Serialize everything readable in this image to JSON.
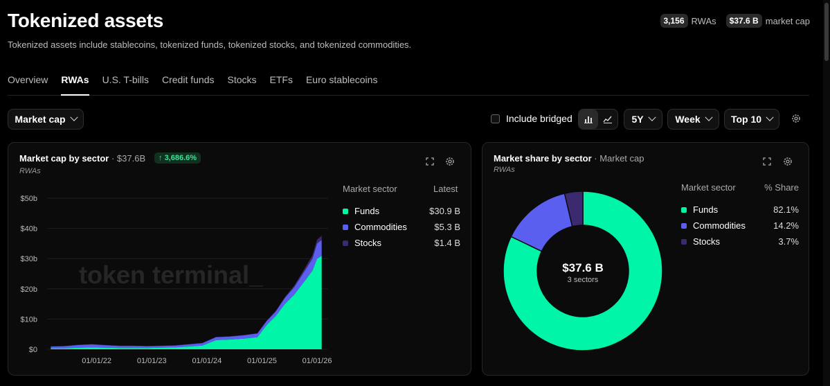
{
  "header": {
    "title": "Tokenized assets",
    "subtitle": "Tokenized assets include stablecoins, tokenized funds, tokenized stocks, and tokenized commodities.",
    "stats": [
      {
        "value": "3,156",
        "label": "RWAs"
      },
      {
        "value": "$37.6 B",
        "label": "market cap"
      }
    ]
  },
  "tabs": [
    "Overview",
    "RWAs",
    "U.S. T-bills",
    "Credit funds",
    "Stocks",
    "ETFs",
    "Euro stablecoins"
  ],
  "active_tab": "RWAs",
  "controls": {
    "metric": "Market cap",
    "include_bridged": "Include bridged",
    "range": "5Y",
    "interval": "Week",
    "top": "Top 10"
  },
  "colors": {
    "funds": "#00f5a8",
    "commodities": "#5b5ff0",
    "stocks": "#3c2a70",
    "accent_green": "#3fe09a"
  },
  "left_card": {
    "title": "Market cap by sector",
    "total": "· $37.6B",
    "change": "3,686.6%",
    "subtitle": "RWAs",
    "watermark": "token terminal_",
    "legend_header_name": "Market sector",
    "legend_header_value": "Latest",
    "legend": [
      {
        "name": "Funds",
        "value": "$30.9 B",
        "color": "#00f5a8"
      },
      {
        "name": "Commodities",
        "value": "$5.3 B",
        "color": "#5b5ff0"
      },
      {
        "name": "Stocks",
        "value": "$1.4 B",
        "color": "#3c2a70"
      }
    ]
  },
  "right_card": {
    "title": "Market share by sector",
    "title_suffix": "· Market cap",
    "subtitle": "RWAs",
    "center_value": "$37.6 B",
    "center_label": "3 sectors",
    "legend_header_name": "Market sector",
    "legend_header_value": "% Share",
    "legend": [
      {
        "name": "Funds",
        "value": "82.1%",
        "color": "#00f5a8"
      },
      {
        "name": "Commodities",
        "value": "14.2%",
        "color": "#5b5ff0"
      },
      {
        "name": "Stocks",
        "value": "3.7%",
        "color": "#3c2a70"
      }
    ]
  },
  "chart_data": [
    {
      "type": "area",
      "stacked": true,
      "title": "Market cap by sector",
      "x_ticks": [
        "01/01/22",
        "01/01/23",
        "01/01/24",
        "01/01/25",
        "01/01/26"
      ],
      "y_ticks": [
        "$0",
        "$10b",
        "$20b",
        "$30b",
        "$40b",
        "$50b"
      ],
      "ylim": [
        0,
        50
      ],
      "grid": true,
      "x": [
        "2021-03",
        "2021-06",
        "2021-09",
        "2021-12",
        "2022-03",
        "2022-06",
        "2022-09",
        "2022-12",
        "2023-03",
        "2023-06",
        "2023-09",
        "2023-12",
        "2024-03",
        "2024-06",
        "2024-09",
        "2024-12",
        "2025-02",
        "2025-04",
        "2025-06",
        "2025-08",
        "2025-10",
        "2025-12",
        "2026-01",
        "2026-02"
      ],
      "series": [
        {
          "name": "Funds",
          "values": [
            0.3,
            0.3,
            0.5,
            0.6,
            0.5,
            0.4,
            0.4,
            0.4,
            0.5,
            0.6,
            0.9,
            1.2,
            3.0,
            3.2,
            3.5,
            4.0,
            8.0,
            11.0,
            15.0,
            18.0,
            22.0,
            26.0,
            30.0,
            30.9
          ]
        },
        {
          "name": "Commodities",
          "values": [
            0.6,
            0.7,
            0.9,
            1.0,
            0.8,
            0.7,
            0.7,
            0.6,
            0.6,
            0.6,
            0.7,
            0.8,
            1.0,
            1.0,
            1.1,
            1.2,
            1.3,
            1.5,
            2.0,
            2.5,
            3.2,
            4.0,
            5.0,
            5.3
          ]
        },
        {
          "name": "Stocks",
          "values": [
            0.1,
            0.1,
            0.1,
            0.1,
            0.1,
            0.1,
            0.1,
            0.1,
            0.1,
            0.1,
            0.1,
            0.1,
            0.1,
            0.1,
            0.1,
            0.1,
            0.1,
            0.2,
            0.3,
            0.5,
            0.8,
            1.1,
            1.3,
            1.4
          ]
        }
      ]
    },
    {
      "type": "pie",
      "donut": true,
      "title": "Market share by sector",
      "categories": [
        "Funds",
        "Commodities",
        "Stocks"
      ],
      "values": [
        82.1,
        14.2,
        3.7
      ]
    }
  ]
}
